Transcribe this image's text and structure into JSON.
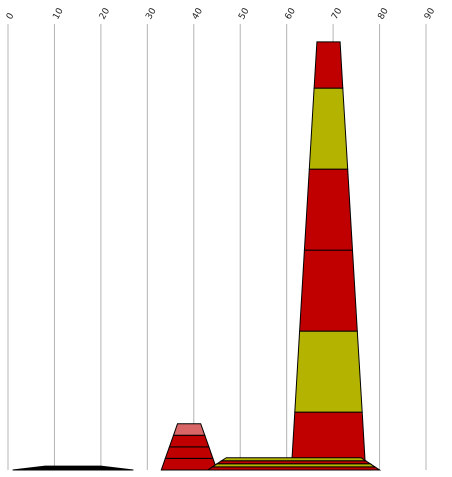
{
  "chart_data": {
    "type": "bar",
    "orientation": "vertical-stacked-trapezoid",
    "x_ticks": [
      "0",
      "10",
      "20",
      "30",
      "40",
      "50",
      "60",
      "70",
      "80",
      "90"
    ],
    "xlim": [
      0,
      90
    ],
    "grid": true,
    "groups": [
      {
        "center": 14,
        "base_width": 26,
        "top_width": 12,
        "segments": [
          {
            "value": 1,
            "color": "#000000"
          }
        ]
      },
      {
        "center": 39,
        "base_width": 12,
        "top_width": 5,
        "segments": [
          {
            "value": 3,
            "color": "#c00000"
          },
          {
            "value": 3,
            "color": "#c00000"
          },
          {
            "value": 3,
            "color": "#c00000"
          },
          {
            "value": 3,
            "color": "#d96666"
          }
        ]
      },
      {
        "center": 69,
        "base_width": 16,
        "top_width": 5,
        "segments": [
          {
            "value": 15,
            "color": "#c00000"
          },
          {
            "value": 21,
            "color": "#b4b400"
          },
          {
            "value": 21,
            "color": "#c00000"
          },
          {
            "value": 21,
            "color": "#c00000"
          },
          {
            "value": 21,
            "color": "#b4b400"
          },
          {
            "value": 12,
            "color": "#c00000"
          }
        ]
      },
      {
        "center": 61.5,
        "base_width": 37,
        "top_width": 29,
        "segments": [
          {
            "value": 0.8,
            "color": "#c00000"
          },
          {
            "value": 0.8,
            "color": "#b4b400"
          },
          {
            "value": 0.8,
            "color": "#c00000"
          },
          {
            "value": 0.8,
            "color": "#b4b400"
          }
        ]
      }
    ],
    "ylim": [
      0,
      112
    ]
  }
}
